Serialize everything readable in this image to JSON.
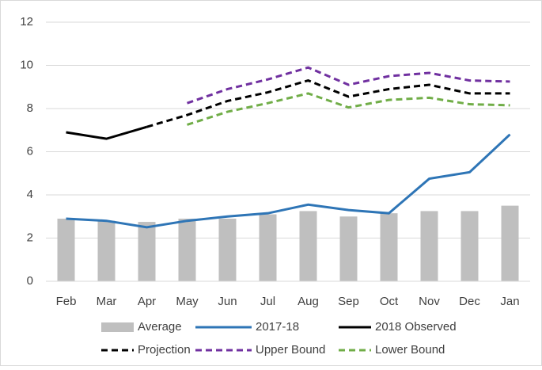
{
  "chart_data": {
    "type": "combo",
    "categories": [
      "Feb",
      "Mar",
      "Apr",
      "May",
      "Jun",
      "Jul",
      "Aug",
      "Sep",
      "Oct",
      "Nov",
      "Dec",
      "Jan"
    ],
    "ylim": [
      0,
      12
    ],
    "yticks": [
      0,
      2,
      4,
      6,
      8,
      10,
      12
    ],
    "grid": true,
    "legend": "bottom",
    "series": [
      {
        "name": "Average",
        "type": "bar",
        "color": "#bfbfbf",
        "values": [
          2.9,
          2.8,
          2.75,
          2.9,
          2.9,
          3.1,
          3.25,
          3.0,
          3.15,
          3.25,
          3.25,
          3.5
        ]
      },
      {
        "name": "2017-18",
        "type": "line",
        "color": "#2e75b6",
        "dashed": false,
        "values": [
          2.9,
          2.8,
          2.5,
          2.8,
          3.0,
          3.15,
          3.55,
          3.3,
          3.15,
          4.75,
          5.05,
          6.8
        ]
      },
      {
        "name": "2018 Observed",
        "type": "line",
        "color": "#000000",
        "dashed": false,
        "values": [
          6.9,
          6.6,
          7.15,
          null,
          null,
          null,
          null,
          null,
          null,
          null,
          null,
          null
        ]
      },
      {
        "name": "Projection",
        "type": "line",
        "color": "#000000",
        "dashed": true,
        "values": [
          null,
          null,
          7.15,
          7.7,
          8.35,
          8.75,
          9.3,
          8.55,
          8.9,
          9.1,
          8.7,
          8.7
        ]
      },
      {
        "name": "Upper Bound",
        "type": "line",
        "color": "#7030a0",
        "dashed": true,
        "values": [
          null,
          null,
          null,
          8.25,
          8.9,
          9.35,
          9.9,
          9.1,
          9.5,
          9.65,
          9.3,
          9.25
        ]
      },
      {
        "name": "Lower Bound",
        "type": "line",
        "color": "#70ad47",
        "dashed": true,
        "values": [
          null,
          null,
          null,
          7.25,
          7.85,
          8.25,
          8.7,
          8.05,
          8.4,
          8.5,
          8.2,
          8.15
        ]
      }
    ]
  }
}
